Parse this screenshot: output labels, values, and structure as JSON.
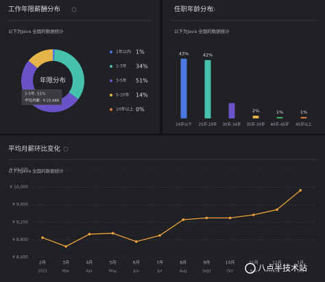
{
  "chart_data": [
    {
      "type": "pie",
      "title": "工作年限薪酬分布",
      "subtitle": "以下为Java 全国的数据统计",
      "categories": [
        "1年以内",
        "1-3年",
        "3-5年",
        "5-10年",
        "10年以上"
      ],
      "values": [
        1,
        34,
        51,
        14,
        0
      ],
      "value_labels": [
        "1%",
        "34%",
        "51%",
        "14%",
        "0%"
      ],
      "colors": [
        "#4a78e0",
        "#45c1ad",
        "#6a52c9",
        "#e6b54a",
        "#e07a38"
      ],
      "center_label": "年限分布",
      "tooltip": [
        "3-5年:  51%",
        "平均月薪:  ￥10,486"
      ]
    },
    {
      "type": "bar",
      "title": "任职年龄分布",
      "subtitle": "以下为Java 全国的数据统计",
      "categories": [
        "24岁以下",
        "25岁-29岁",
        "30岁-34岁",
        "35岁-39岁",
        "40岁-45岁",
        "45岁以上"
      ],
      "values": [
        43,
        42,
        11,
        2,
        1,
        1
      ],
      "value_labels": [
        "43%",
        "42%",
        null,
        "2%",
        "1%",
        "1%"
      ],
      "colors": [
        "#4a78e0",
        "#45c1ad",
        "#6a52c9",
        "#e6b54a",
        "#3cb878",
        "#e07a38"
      ]
    },
    {
      "type": "line",
      "title": "平均月薪环比变化",
      "subtitle": "以下为Java 全国的数据统计",
      "categories": [
        "2月",
        "3月",
        "4月",
        "5月",
        "6月",
        "7月",
        "8月",
        "9月",
        "10月",
        "11月",
        "12月",
        "1月"
      ],
      "sublabels": [
        "2021",
        "Mar",
        "Apr",
        "May",
        "Jun",
        "Jul",
        "Aug",
        "Sept",
        "Oct",
        "Nov",
        "Dec",
        "Jan"
      ],
      "values": [
        8850,
        8650,
        8930,
        8950,
        8760,
        8900,
        9260,
        9300,
        9300,
        9370,
        9490,
        9930
      ],
      "color": "#f2a33a",
      "ylim": [
        8400,
        10400
      ],
      "yticks": [
        {
          "value": 8400,
          "label": "¥ 8,400"
        },
        {
          "value": 8800,
          "label": "¥ 8,800"
        },
        {
          "value": 9200,
          "label": "¥ 9,200"
        },
        {
          "value": 9600,
          "label": "¥ 9,600"
        },
        {
          "value": 10000,
          "label": "¥ 10,000"
        },
        {
          "value": 10400,
          "label": "¥ 10,400"
        }
      ],
      "grid": true
    }
  ],
  "watermark": "八点半技术站"
}
